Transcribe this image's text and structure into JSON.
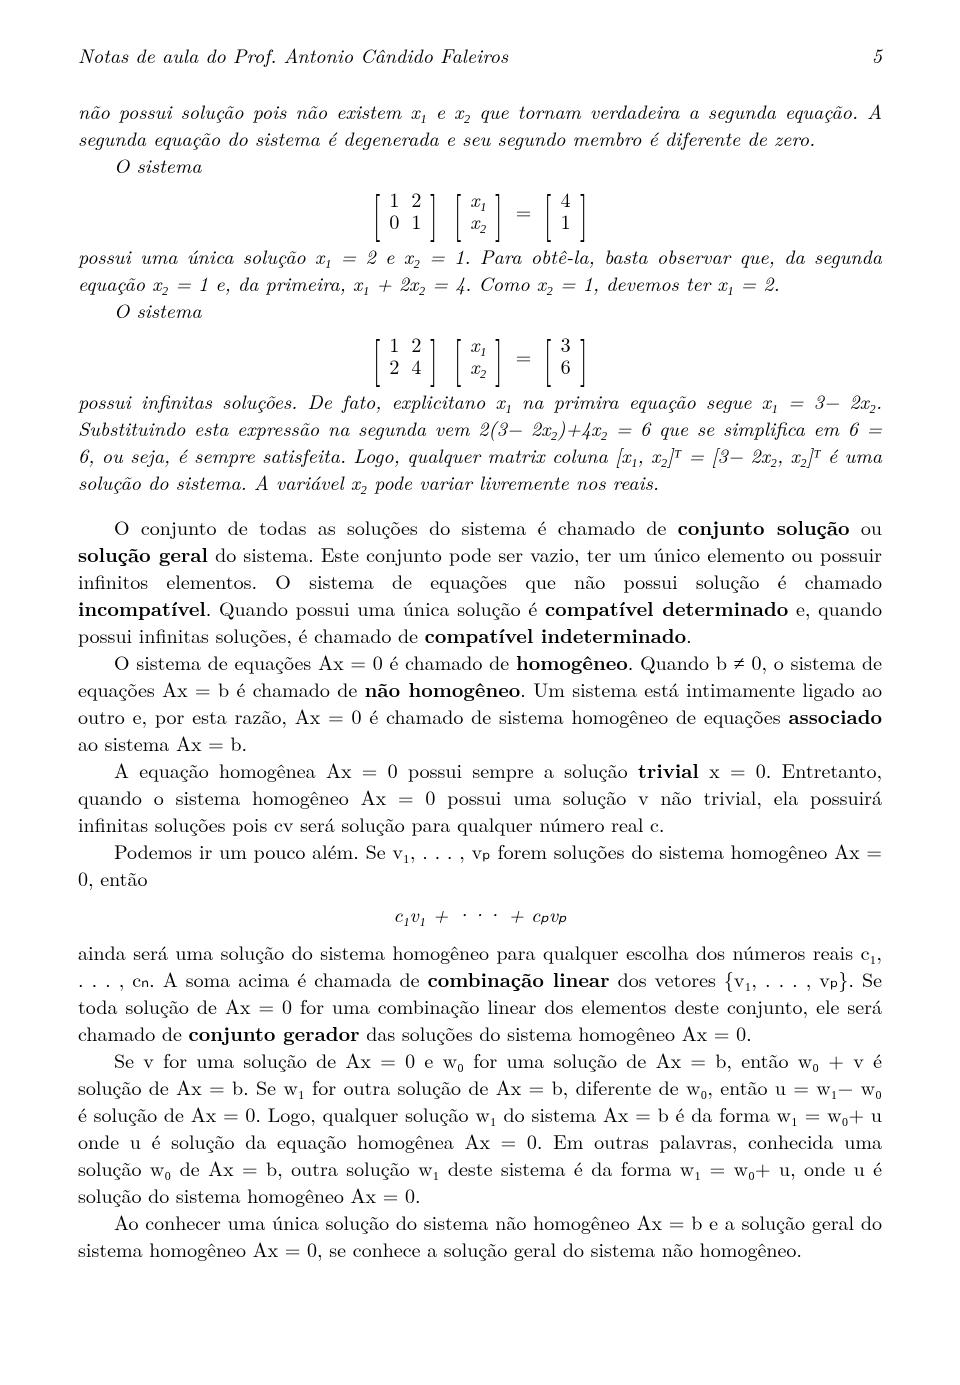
{
  "header": {
    "title": "Notas de aula do Prof. Antonio Cândido Faleiros",
    "page_number": "5"
  },
  "body": {
    "p1": "não possui solução pois não existem x₁ e x₂ que tornam verdadeira a segunda equação. A segunda equação do sistema é degenerada e seu segundo membro é diferente de zero.",
    "p2a": "O sistema",
    "eq1": {
      "A": [
        [
          "1",
          "2"
        ],
        [
          "0",
          "1"
        ]
      ],
      "x": [
        "x₁",
        "x₂"
      ],
      "b": [
        "4",
        "1"
      ]
    },
    "p2b": "possui uma única solução x₁ = 2 e x₂ = 1. Para obtê-la, basta observar que, da segunda equação x₂ = 1 e, da primeira, x₁ + 2x₂ = 4. Como x₂ = 1, devemos ter x₁ = 2.",
    "p3a": "O sistema",
    "eq2": {
      "A": [
        [
          "1",
          "2"
        ],
        [
          "2",
          "4"
        ]
      ],
      "x": [
        "x₁",
        "x₂"
      ],
      "b": [
        "3",
        "6"
      ]
    },
    "p3b": "possui infinitas soluções. De fato, explicitano x₁ na primira equação segue x₁ = 3− 2x₂. Substituindo esta expressão na segunda vem 2(3− 2x₂)+4x₂ = 6 que se simplifica em 6 = 6, ou seja, é sempre satisfeita. Logo, qualquer matrix coluna [x₁, x₂]ᵀ = [3− 2x₂, x₂]ᵀ é uma solução do sistema. A variável x₂ pode variar livremente nos reais.",
    "p4": "O conjunto de todas as soluções do sistema é chamado de ",
    "p4b1": "conjunto solução",
    "p4c": " ou ",
    "p4b2": "solução geral",
    "p4d": " do sistema. Este conjunto pode ser vazio, ter um único elemento ou possuir infinitos elementos. O sistema de equações que não possui solução é chamado ",
    "p4b3": "incompatível",
    "p4e": ". Quando possui uma única solução é ",
    "p4b4": "compatível determinado",
    "p4f": " e, quando possui infinitas soluções, é chamado de ",
    "p4b5": "compatível indeterminado",
    "p4g": ".",
    "p5a": "O sistema de equações Ax = 0 é chamado de ",
    "p5b1": "homogêneo",
    "p5b": ". Quando b ≠ 0, o sistema de equações Ax = b é chamado de ",
    "p5b2": "não homogêneo",
    "p5c": ". Um sistema está intimamente ligado ao outro e, por esta razão, Ax = 0 é chamado de sistema homogêneo de equações ",
    "p5b3": "associado",
    "p5d": " ao sistema Ax = b.",
    "p6a": "A equação homogênea Ax = 0 possui sempre a solução ",
    "p6b1": "trivial",
    "p6b": " x = 0. Entretanto, quando o sistema homogêneo Ax = 0 possui uma solução v não trivial, ela possuirá infinitas soluções pois cv será solução para qualquer número real c.",
    "p7a": "Podemos ir um pouco além. Se v₁, . . . , vₚ forem soluções do sistema homogêneo Ax = 0, então",
    "eq3": "c₁v₁ + ··· + cₚvₚ",
    "p8a": "ainda será uma solução do sistema homogêneo para qualquer escolha dos números reais c₁, . . . , cₙ. A soma acima é chamada de ",
    "p8b1": "combinação linear",
    "p8b": " dos vetores {v₁, . . . , vₚ}. Se toda solução de Ax = 0 for uma combinação linear dos elementos deste conjunto, ele será chamado de ",
    "p8b2": "conjunto gerador",
    "p8c": " das soluções do sistema homogêneo Ax = 0.",
    "p9": "Se v for uma solução de Ax = 0 e w₀ for uma solução de Ax = b, então w₀ + v é solução de Ax = b. Se w₁ for outra solução de Ax = b, diferente de w₀, então u = w₁− w₀ é solução de Ax = 0. Logo, qualquer solução w₁ do sistema Ax = b é da forma w₁ = w₀+ u onde u é solução da equação homogênea Ax = 0. Em outras palavras, conhecida uma solução w₀ de Ax = b, outra solução w₁ deste sistema é da forma w₁ = w₀+ u, onde u é solução do sistema homogêneo Ax = 0.",
    "p10": "Ao conhecer uma única solução do sistema não homogêneo Ax = b e a solução geral do sistema homogêneo Ax = 0, se conhece a solução geral do sistema não homogêneo."
  }
}
